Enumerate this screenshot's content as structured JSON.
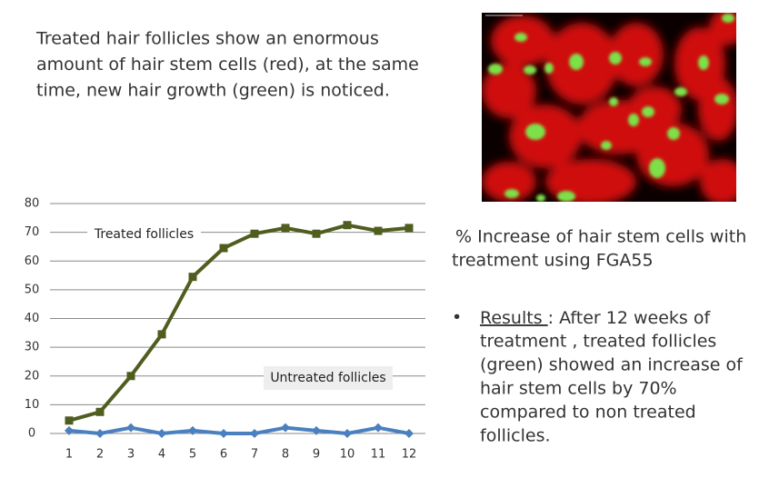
{
  "slide": {
    "intro_lines": [
      "Treated hair follicles show an enormous",
      "amount of hair stem cells (red), at the same",
      "time, new hair growth (green) is noticed."
    ],
    "caption_lines": [
      "% Increase of hair stem cells with",
      "treatment using FGA55"
    ],
    "bullet": {
      "label": "Results ",
      "lines": [
        ": After 12 weeks of",
        "treatment , treated follicles",
        "(green) showed an increase of",
        "hair stem cells by 70%",
        "compared to non treated",
        "follicles."
      ]
    }
  },
  "chart_data": {
    "type": "line",
    "categories": [
      "1",
      "2",
      "3",
      "4",
      "5",
      "6",
      "7",
      "8",
      "9",
      "10",
      "11",
      "12"
    ],
    "series": [
      {
        "name": "Treated follicles",
        "color": "#4f5d1e",
        "marker": "square",
        "values": [
          4.5,
          7.5,
          20,
          34.5,
          54.5,
          64.5,
          69.5,
          71.5,
          69.5,
          72.5,
          70.5,
          71.5
        ]
      },
      {
        "name": "Untreated follicles",
        "color": "#4a80bf",
        "marker": "diamond",
        "values": [
          1,
          0,
          2,
          0,
          1,
          0,
          0,
          2,
          1,
          0,
          2,
          0
        ]
      }
    ],
    "ylim": [
      0,
      80
    ],
    "yticks": [
      0,
      10,
      20,
      30,
      40,
      50,
      60,
      70,
      80
    ],
    "grid": true
  }
}
